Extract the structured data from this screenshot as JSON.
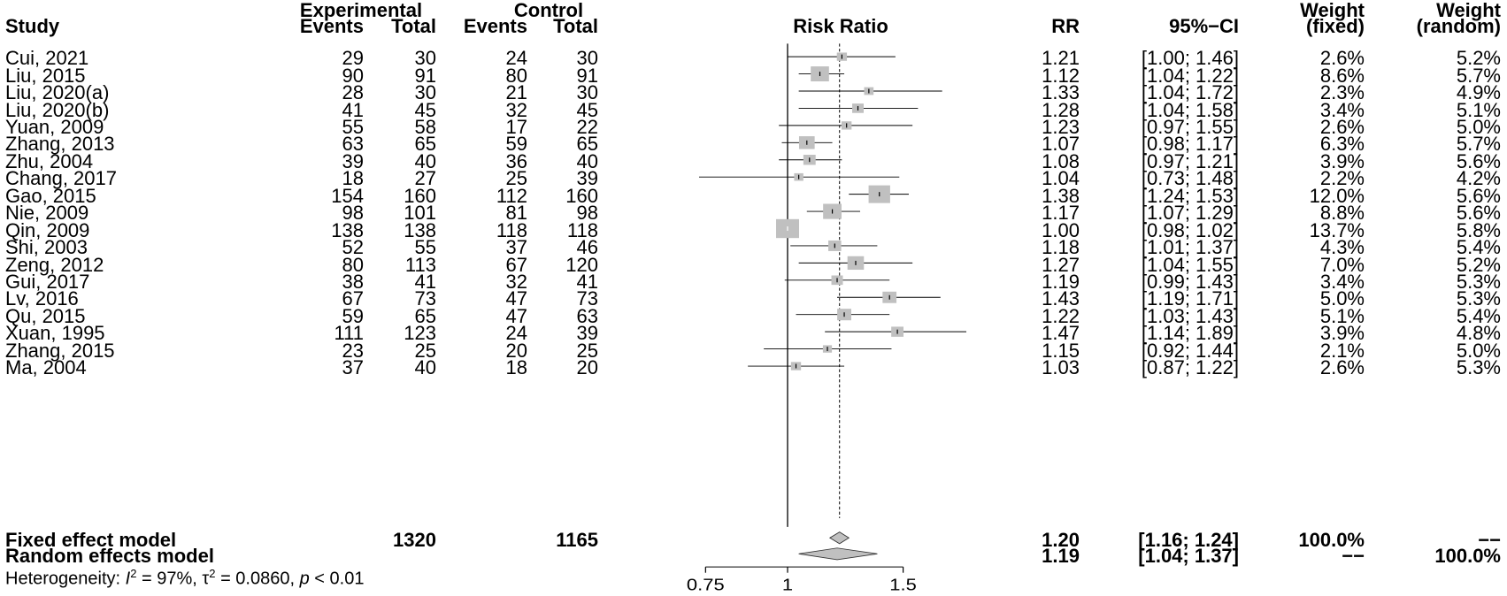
{
  "headers": {
    "study": "Study",
    "experimental": "Experimental",
    "control": "Control",
    "events": "Events",
    "total": "Total",
    "risk_ratio": "Risk Ratio",
    "rr": "RR",
    "ci": "95%−CI",
    "weight": "Weight",
    "fixed": "(fixed)",
    "random": "(random)"
  },
  "rows": [
    {
      "study": "Cui, 2021",
      "e_events": "29",
      "e_total": "30",
      "c_events": "24",
      "c_total": "30",
      "rr": "1.21",
      "ci": "[1.00; 1.46]",
      "w_fixed": "2.6%",
      "w_random": "5.2%"
    },
    {
      "study": "Liu, 2015",
      "e_events": "90",
      "e_total": "91",
      "c_events": "80",
      "c_total": "91",
      "rr": "1.12",
      "ci": "[1.04; 1.22]",
      "w_fixed": "8.6%",
      "w_random": "5.7%"
    },
    {
      "study": "Liu, 2020(a)",
      "e_events": "28",
      "e_total": "30",
      "c_events": "21",
      "c_total": "30",
      "rr": "1.33",
      "ci": "[1.04; 1.72]",
      "w_fixed": "2.3%",
      "w_random": "4.9%"
    },
    {
      "study": "Liu, 2020(b)",
      "e_events": "41",
      "e_total": "45",
      "c_events": "32",
      "c_total": "45",
      "rr": "1.28",
      "ci": "[1.04; 1.58]",
      "w_fixed": "3.4%",
      "w_random": "5.1%"
    },
    {
      "study": "Yuan, 2009",
      "e_events": "55",
      "e_total": "58",
      "c_events": "17",
      "c_total": "22",
      "rr": "1.23",
      "ci": "[0.97; 1.55]",
      "w_fixed": "2.6%",
      "w_random": "5.0%"
    },
    {
      "study": "Zhang, 2013",
      "e_events": "63",
      "e_total": "65",
      "c_events": "59",
      "c_total": "65",
      "rr": "1.07",
      "ci": "[0.98; 1.17]",
      "w_fixed": "6.3%",
      "w_random": "5.7%"
    },
    {
      "study": "Zhu, 2004",
      "e_events": "39",
      "e_total": "40",
      "c_events": "36",
      "c_total": "40",
      "rr": "1.08",
      "ci": "[0.97; 1.21]",
      "w_fixed": "3.9%",
      "w_random": "5.6%"
    },
    {
      "study": "Chang, 2017",
      "e_events": "18",
      "e_total": "27",
      "c_events": "25",
      "c_total": "39",
      "rr": "1.04",
      "ci": "[0.73; 1.48]",
      "w_fixed": "2.2%",
      "w_random": "4.2%"
    },
    {
      "study": "Gao, 2015",
      "e_events": "154",
      "e_total": "160",
      "c_events": "112",
      "c_total": "160",
      "rr": "1.38",
      "ci": "[1.24; 1.53]",
      "w_fixed": "12.0%",
      "w_random": "5.6%"
    },
    {
      "study": "Nie, 2009",
      "e_events": "98",
      "e_total": "101",
      "c_events": "81",
      "c_total": "98",
      "rr": "1.17",
      "ci": "[1.07; 1.29]",
      "w_fixed": "8.8%",
      "w_random": "5.6%"
    },
    {
      "study": "Qin, 2009",
      "e_events": "138",
      "e_total": "138",
      "c_events": "118",
      "c_total": "118",
      "rr": "1.00",
      "ci": "[0.98; 1.02]",
      "w_fixed": "13.7%",
      "w_random": "5.8%"
    },
    {
      "study": "Shi, 2003",
      "e_events": "52",
      "e_total": "55",
      "c_events": "37",
      "c_total": "46",
      "rr": "1.18",
      "ci": "[1.01; 1.37]",
      "w_fixed": "4.3%",
      "w_random": "5.4%"
    },
    {
      "study": "Zeng, 2012",
      "e_events": "80",
      "e_total": "113",
      "c_events": "67",
      "c_total": "120",
      "rr": "1.27",
      "ci": "[1.04; 1.55]",
      "w_fixed": "7.0%",
      "w_random": "5.2%"
    },
    {
      "study": "Gui, 2017",
      "e_events": "38",
      "e_total": "41",
      "c_events": "32",
      "c_total": "41",
      "rr": "1.19",
      "ci": "[0.99; 1.43]",
      "w_fixed": "3.4%",
      "w_random": "5.3%"
    },
    {
      "study": "Lv, 2016",
      "e_events": "67",
      "e_total": "73",
      "c_events": "47",
      "c_total": "73",
      "rr": "1.43",
      "ci": "[1.19; 1.71]",
      "w_fixed": "5.0%",
      "w_random": "5.3%"
    },
    {
      "study": "Qu, 2015",
      "e_events": "59",
      "e_total": "65",
      "c_events": "47",
      "c_total": "63",
      "rr": "1.22",
      "ci": "[1.03; 1.43]",
      "w_fixed": "5.1%",
      "w_random": "5.4%"
    },
    {
      "study": "Xuan, 1995",
      "e_events": "111",
      "e_total": "123",
      "c_events": "24",
      "c_total": "39",
      "rr": "1.47",
      "ci": "[1.14; 1.89]",
      "w_fixed": "3.9%",
      "w_random": "4.8%"
    },
    {
      "study": "Zhang, 2015",
      "e_events": "23",
      "e_total": "25",
      "c_events": "20",
      "c_total": "25",
      "rr": "1.15",
      "ci": "[0.92; 1.44]",
      "w_fixed": "2.1%",
      "w_random": "5.0%"
    },
    {
      "study": "Ma, 2004",
      "e_events": "37",
      "e_total": "40",
      "c_events": "18",
      "c_total": "20",
      "rr": "1.03",
      "ci": "[0.87; 1.22]",
      "w_fixed": "2.6%",
      "w_random": "5.3%"
    }
  ],
  "fixed": {
    "label": "Fixed effect model",
    "e_total": "1320",
    "c_total": "1165",
    "rr": "1.20",
    "ci": "[1.16; 1.24]",
    "w_fixed": "100.0%",
    "w_random": "−−"
  },
  "random": {
    "label": "Random effects model",
    "rr": "1.19",
    "ci": "[1.04; 1.37]",
    "w_fixed": "−−",
    "w_random": "100.0%"
  },
  "heterogeneity": {
    "prefix": "Heterogeneity: ",
    "i2_sym": "I",
    "i2_val": " = 97%, τ",
    "tau2_val": " = 0.0860, ",
    "p_sym": "p",
    "p_val": " < 0.01",
    "sup": "2"
  },
  "chart_data": {
    "type": "forest",
    "xscale": "log",
    "xlim": [
      0.75,
      1.5
    ],
    "xticks": [
      "0.75",
      "1",
      "1.5"
    ],
    "null_line": 1,
    "fixed_estimate_line": 1.2,
    "xlabel": "",
    "title": "Risk Ratio",
    "studies": [
      {
        "name": "Cui, 2021",
        "rr": 1.21,
        "lo": 1.0,
        "hi": 1.46,
        "weight_fixed": 2.6
      },
      {
        "name": "Liu, 2015",
        "rr": 1.12,
        "lo": 1.04,
        "hi": 1.22,
        "weight_fixed": 8.6
      },
      {
        "name": "Liu, 2020(a)",
        "rr": 1.33,
        "lo": 1.04,
        "hi": 1.72,
        "weight_fixed": 2.3
      },
      {
        "name": "Liu, 2020(b)",
        "rr": 1.28,
        "lo": 1.04,
        "hi": 1.58,
        "weight_fixed": 3.4
      },
      {
        "name": "Yuan, 2009",
        "rr": 1.23,
        "lo": 0.97,
        "hi": 1.55,
        "weight_fixed": 2.6
      },
      {
        "name": "Zhang, 2013",
        "rr": 1.07,
        "lo": 0.98,
        "hi": 1.17,
        "weight_fixed": 6.3
      },
      {
        "name": "Zhu, 2004",
        "rr": 1.08,
        "lo": 0.97,
        "hi": 1.21,
        "weight_fixed": 3.9
      },
      {
        "name": "Chang, 2017",
        "rr": 1.04,
        "lo": 0.73,
        "hi": 1.48,
        "weight_fixed": 2.2
      },
      {
        "name": "Gao, 2015",
        "rr": 1.38,
        "lo": 1.24,
        "hi": 1.53,
        "weight_fixed": 12.0
      },
      {
        "name": "Nie, 2009",
        "rr": 1.17,
        "lo": 1.07,
        "hi": 1.29,
        "weight_fixed": 8.8
      },
      {
        "name": "Qin, 2009",
        "rr": 1.0,
        "lo": 0.98,
        "hi": 1.02,
        "weight_fixed": 13.7
      },
      {
        "name": "Shi, 2003",
        "rr": 1.18,
        "lo": 1.01,
        "hi": 1.37,
        "weight_fixed": 4.3
      },
      {
        "name": "Zeng, 2012",
        "rr": 1.27,
        "lo": 1.04,
        "hi": 1.55,
        "weight_fixed": 7.0
      },
      {
        "name": "Gui, 2017",
        "rr": 1.19,
        "lo": 0.99,
        "hi": 1.43,
        "weight_fixed": 3.4
      },
      {
        "name": "Lv, 2016",
        "rr": 1.43,
        "lo": 1.19,
        "hi": 1.71,
        "weight_fixed": 5.0
      },
      {
        "name": "Qu, 2015",
        "rr": 1.22,
        "lo": 1.03,
        "hi": 1.43,
        "weight_fixed": 5.1
      },
      {
        "name": "Xuan, 1995",
        "rr": 1.47,
        "lo": 1.14,
        "hi": 1.89,
        "weight_fixed": 3.9
      },
      {
        "name": "Zhang, 2015",
        "rr": 1.15,
        "lo": 0.92,
        "hi": 1.44,
        "weight_fixed": 2.1
      },
      {
        "name": "Ma, 2004",
        "rr": 1.03,
        "lo": 0.87,
        "hi": 1.22,
        "weight_fixed": 2.6
      }
    ],
    "summary": [
      {
        "name": "Fixed effect model",
        "rr": 1.2,
        "lo": 1.16,
        "hi": 1.24
      },
      {
        "name": "Random effects model",
        "rr": 1.19,
        "lo": 1.04,
        "hi": 1.37
      }
    ],
    "colors": {
      "box": "#c0c0c0",
      "diamond": "#c0c0c0",
      "line": "#000000"
    }
  }
}
